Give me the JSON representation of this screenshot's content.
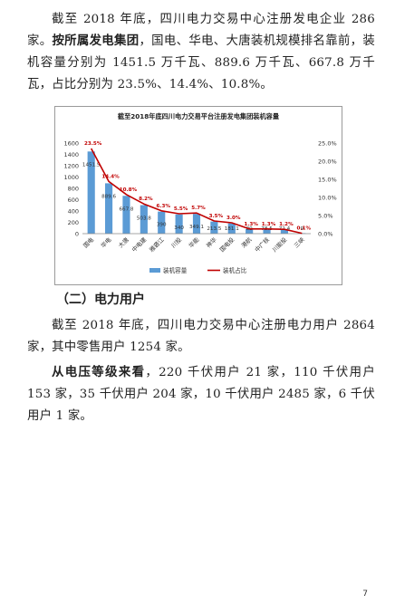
{
  "paragraphs": {
    "p1_text": "截至 2018 年底，四川电力交易中心注册发电企业 286 家。",
    "p2_bold": "按所属发电集团",
    "p2_text": "，国电、华电、大唐装机规模排名靠前，装机容量分别为 1451.5 万千瓦、889.6 万千瓦、667.8 万千瓦，占比分别为 23.5%、14.4%、10.8%。",
    "heading": "（二）电力用户",
    "p3_text": "截至 2018 年底，四川电力交易中心注册电力用户 2864 家，其中零售用户 1254 家。",
    "p4_bold": "从电压等级来看",
    "p4_text": "，220 千伏用户 21 家，110 千伏用户 153 家，35 千伏用户 204 家，10 千伏用户 2485 家，6 千伏用户 1 家。"
  },
  "page_number": "7",
  "chart_data": {
    "type": "bar",
    "title": "截至2018年底四川电力交易平台注册发电集团装机容量",
    "categories": [
      "国电",
      "华电",
      "大唐",
      "中电建",
      "雅砻江",
      "川投",
      "华能",
      "神华",
      "国电投",
      "港航",
      "中广核",
      "川能投",
      "三峡"
    ],
    "series": [
      {
        "name": "装机容量",
        "kind": "bar",
        "axis": "left",
        "color": "#5b9bd5",
        "values": [
          1451.5,
          889.6,
          667.8,
          503.8,
          390,
          340,
          349.1,
          213.5,
          181.1,
          80,
          78.5,
          72.4,
          9
        ],
        "labels": [
          "1451.5",
          "889.6",
          "667.8",
          "503.8",
          "390",
          "340",
          "349.1",
          "213.5",
          "181.1",
          "80",
          "78.5",
          "72.4",
          "9"
        ]
      },
      {
        "name": "装机占比",
        "kind": "line",
        "axis": "right",
        "color": "#c00000",
        "values": [
          23.5,
          14.4,
          10.8,
          8.2,
          6.3,
          5.5,
          5.7,
          3.5,
          3.0,
          1.3,
          1.3,
          1.2,
          0.1
        ],
        "labels": [
          "23.5%",
          "14.4%",
          "10.8%",
          "8.2%",
          "6.3%",
          "5.5%",
          "5.7%",
          "3.5%",
          "3.0%",
          "1.3%",
          "1.3%",
          "1.2%",
          "0.1%"
        ]
      }
    ],
    "ylim_left": [
      0,
      1600
    ],
    "yticks_left": [
      "0",
      "200",
      "400",
      "600",
      "800",
      "1000",
      "1200",
      "1400",
      "1600"
    ],
    "ylim_right": [
      0,
      25
    ],
    "yticks_right": [
      "0.0%",
      "5.0%",
      "10.0%",
      "15.0%",
      "20.0%",
      "25.0%"
    ],
    "legend_position": "bottom",
    "grid": false
  }
}
